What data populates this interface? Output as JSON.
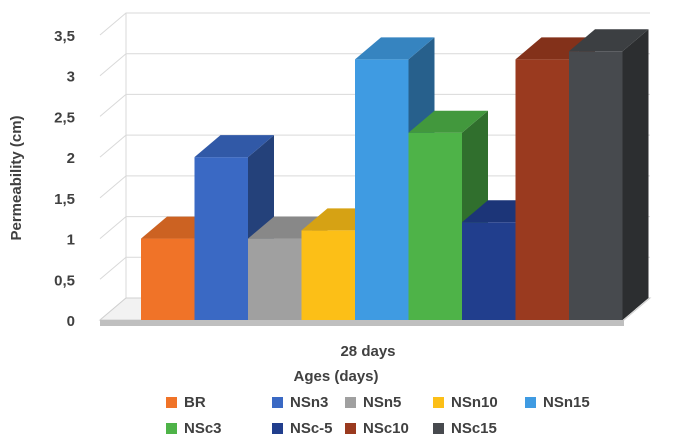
{
  "chart_data": {
    "type": "bar",
    "title": "",
    "xlabel": "Ages (days)",
    "ylabel": "Permeability (cm)",
    "categories": [
      "28 days"
    ],
    "ylim": [
      0,
      3.5
    ],
    "yticks": [
      "0",
      "0,5",
      "1",
      "1,5",
      "2",
      "2,5",
      "3",
      "3,5"
    ],
    "grid": true,
    "legend_position": "bottom",
    "series": [
      {
        "name": "BR",
        "values": [
          1.0
        ],
        "color": "#F07328"
      },
      {
        "name": "NSn3",
        "values": [
          2.0
        ],
        "color": "#3A69C4"
      },
      {
        "name": "NSn5",
        "values": [
          1.0
        ],
        "color": "#A0A0A0"
      },
      {
        "name": "NSn10",
        "values": [
          1.1
        ],
        "color": "#FCBF17"
      },
      {
        "name": "NSn15",
        "values": [
          3.2
        ],
        "color": "#3F9BE2"
      },
      {
        "name": "NSc3",
        "values": [
          2.3
        ],
        "color": "#4EB348"
      },
      {
        "name": "NSc-5",
        "values": [
          1.2
        ],
        "color": "#213E8D"
      },
      {
        "name": "NSc10",
        "values": [
          3.2
        ],
        "color": "#9A3A1F"
      },
      {
        "name": "NSc15",
        "values": [
          3.3
        ],
        "color": "#474A4E"
      }
    ]
  }
}
